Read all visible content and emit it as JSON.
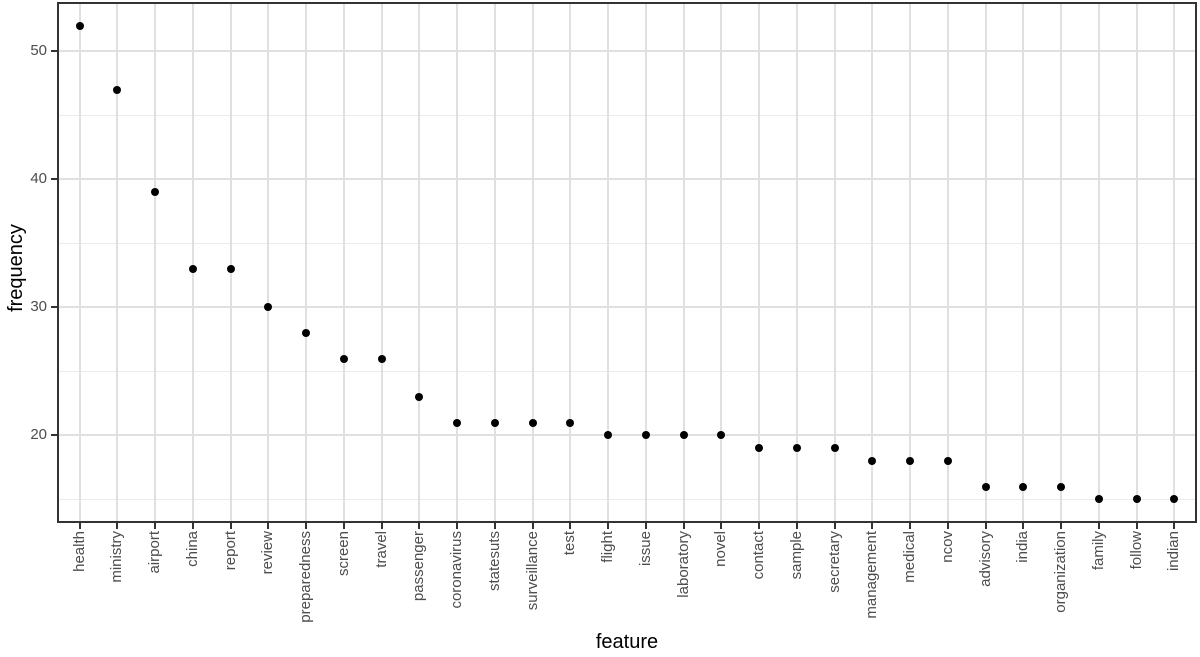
{
  "chart_data": {
    "type": "scatter",
    "title": "",
    "xlabel": "feature",
    "ylabel": "frequency",
    "categories": [
      "health",
      "ministry",
      "airport",
      "china",
      "report",
      "review",
      "preparedness",
      "screen",
      "travel",
      "passenger",
      "coronavirus",
      "statesuts",
      "surveillance",
      "test",
      "flight",
      "issue",
      "laboratory",
      "novel",
      "contact",
      "sample",
      "secretary",
      "management",
      "medical",
      "ncov",
      "advisory",
      "india",
      "organization",
      "family",
      "follow",
      "indian"
    ],
    "values": [
      52,
      47,
      39,
      33,
      33,
      30,
      28,
      26,
      26,
      23,
      21,
      21,
      21,
      21,
      20,
      20,
      20,
      20,
      19,
      19,
      19,
      18,
      18,
      18,
      16,
      16,
      16,
      15,
      15,
      15
    ],
    "ylim": [
      13.15,
      53.85
    ],
    "y_major_ticks": [
      20,
      30,
      40,
      50
    ],
    "y_minor_gridlines": [
      15,
      25,
      35,
      45
    ],
    "grid": true,
    "legend": "none",
    "colors": {
      "background": "#ffffff",
      "panel_border": "#333333",
      "grid_major": "#e0e0e0",
      "grid_minor": "#ebebeb",
      "tick_mark": "#333333",
      "tick_label": "#4d4d4d",
      "axis_title": "#000000",
      "point": "#000000"
    }
  }
}
